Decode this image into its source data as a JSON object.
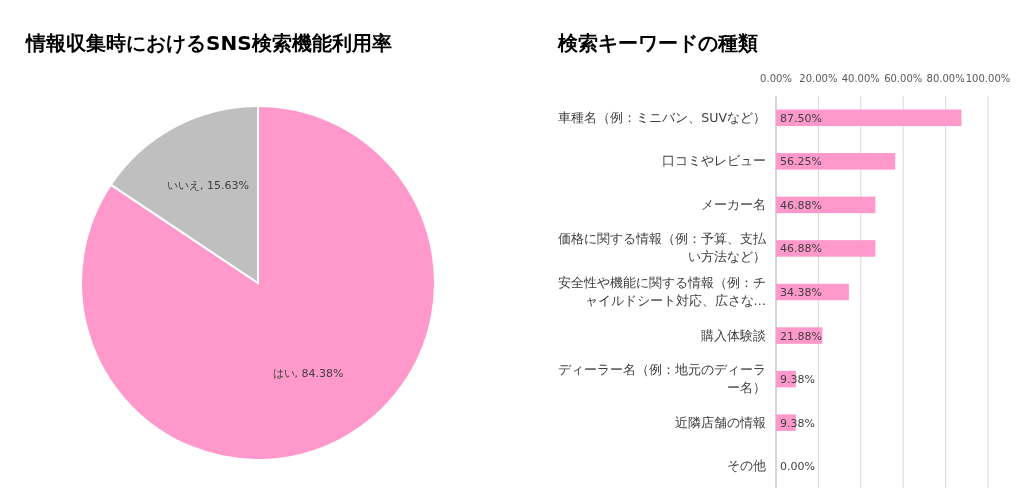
{
  "chart_data": [
    {
      "type": "pie",
      "title": "情報収集時におけるSNS検索機能利用率",
      "categories": [
        "はい",
        "いいえ"
      ],
      "values": [
        84.38,
        15.63
      ],
      "colors": [
        "#ff99cc",
        "#bfbfbf"
      ],
      "value_labels": [
        "84.38%",
        "15.63%"
      ]
    },
    {
      "type": "bar",
      "title": "検索キーワードの種類",
      "orientation": "horizontal",
      "categories": [
        "車種名（例：ミニバン、SUVなど）",
        "口コミやレビュー",
        "メーカー名",
        "価格に関する情報（例：予算、支払い方法など）",
        "安全性や機能に関する情報（例：チャイルドシート対応、広さな…",
        "購入体験談",
        "ディーラー名（例：地元のディーラー名）",
        "近隣店舗の情報",
        "その他"
      ],
      "values": [
        87.5,
        56.25,
        46.88,
        46.88,
        34.38,
        21.88,
        9.38,
        9.38,
        0
      ],
      "value_labels": [
        "87.50%",
        "56.25%",
        "46.88%",
        "46.88%",
        "34.38%",
        "21.88%",
        "9.38%",
        "9.38%",
        "0.00%"
      ],
      "color": "#ff99cc",
      "xlim": [
        0,
        100
      ],
      "xticks": [
        {
          "value": 0,
          "label": "0.00%"
        },
        {
          "value": 20,
          "label": "20.00%"
        },
        {
          "value": 40,
          "label": "40.00%"
        },
        {
          "value": 60,
          "label": "60.00%"
        },
        {
          "value": 80,
          "label": "80.00%"
        },
        {
          "value": 100,
          "label": "100.00%"
        }
      ],
      "grid": "x"
    }
  ]
}
